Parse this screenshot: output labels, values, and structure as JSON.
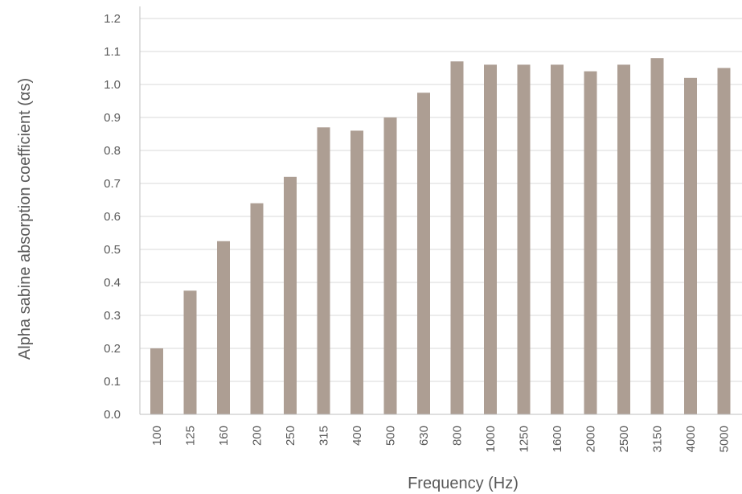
{
  "chart_data": {
    "type": "bar",
    "title": "",
    "xlabel": "Frequency (Hz)",
    "ylabel": "Alpha sabine absorption coefficient (αs)",
    "categories": [
      "100",
      "125",
      "160",
      "200",
      "250",
      "315",
      "400",
      "500",
      "630",
      "800",
      "1000",
      "1250",
      "1600",
      "2000",
      "2500",
      "3150",
      "4000",
      "5000"
    ],
    "values": [
      0.2,
      0.375,
      0.525,
      0.64,
      0.72,
      0.87,
      0.86,
      0.9,
      0.975,
      1.07,
      1.06,
      1.06,
      1.06,
      1.04,
      1.06,
      1.08,
      1.02,
      1.05
    ],
    "ylim": [
      0,
      1.2
    ],
    "yticks": [
      "0.0",
      "0.1",
      "0.2",
      "0.3",
      "0.4",
      "0.5",
      "0.6",
      "0.7",
      "0.8",
      "0.9",
      "1.0",
      "1.1",
      "1.2"
    ],
    "grid": true,
    "legend": "none",
    "colors": {
      "bar": "#ad9e93",
      "grid": "#d9d9d9",
      "axis": "#bfbfbf",
      "text": "#595959"
    }
  }
}
